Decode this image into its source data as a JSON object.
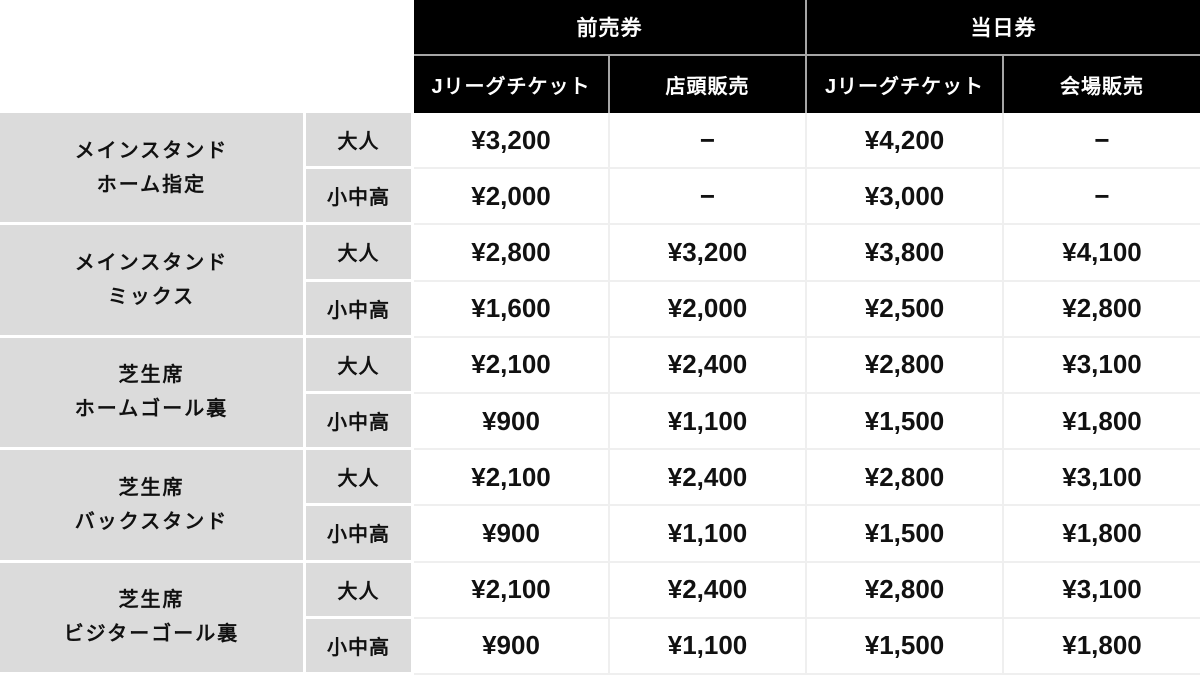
{
  "table": {
    "header_groups": [
      {
        "label": "前売券"
      },
      {
        "label": "当日券"
      }
    ],
    "sub_headers": [
      {
        "label": "Jリーグチケット"
      },
      {
        "label": "店頭販売"
      },
      {
        "label": "Jリーグチケット"
      },
      {
        "label": "会場販売"
      }
    ],
    "categories": [
      {
        "name": "メインスタンド\nホーム指定",
        "rows": [
          {
            "age": "大人",
            "prices": [
              "¥3,200",
              "−",
              "¥4,200",
              "−"
            ]
          },
          {
            "age": "小中高",
            "prices": [
              "¥2,000",
              "−",
              "¥3,000",
              "−"
            ]
          }
        ]
      },
      {
        "name": "メインスタンド\nミックス",
        "rows": [
          {
            "age": "大人",
            "prices": [
              "¥2,800",
              "¥3,200",
              "¥3,800",
              "¥4,100"
            ]
          },
          {
            "age": "小中高",
            "prices": [
              "¥1,600",
              "¥2,000",
              "¥2,500",
              "¥2,800"
            ]
          }
        ]
      },
      {
        "name": "芝生席\nホームゴール裏",
        "rows": [
          {
            "age": "大人",
            "prices": [
              "¥2,100",
              "¥2,400",
              "¥2,800",
              "¥3,100"
            ]
          },
          {
            "age": "小中高",
            "prices": [
              "¥900",
              "¥1,100",
              "¥1,500",
              "¥1,800"
            ]
          }
        ]
      },
      {
        "name": "芝生席\nバックスタンド",
        "rows": [
          {
            "age": "大人",
            "prices": [
              "¥2,100",
              "¥2,400",
              "¥2,800",
              "¥3,100"
            ]
          },
          {
            "age": "小中高",
            "prices": [
              "¥900",
              "¥1,100",
              "¥1,500",
              "¥1,800"
            ]
          }
        ]
      },
      {
        "name": "芝生席\nビジターゴール裏",
        "rows": [
          {
            "age": "大人",
            "prices": [
              "¥2,100",
              "¥2,400",
              "¥2,800",
              "¥3,100"
            ]
          },
          {
            "age": "小中高",
            "prices": [
              "¥900",
              "¥1,100",
              "¥1,500",
              "¥1,800"
            ]
          }
        ]
      }
    ]
  },
  "colors": {
    "page_bg": "#ffffff",
    "header_bg": "#000000",
    "header_text": "#ffffff",
    "category_bg": "#dbdbdb",
    "price_bg": "#ffffff",
    "body_text": "#111111",
    "grid_line_light": "#efefef",
    "grid_line_header": "#a6a6a6",
    "cell_gap_white": "#ffffff"
  }
}
